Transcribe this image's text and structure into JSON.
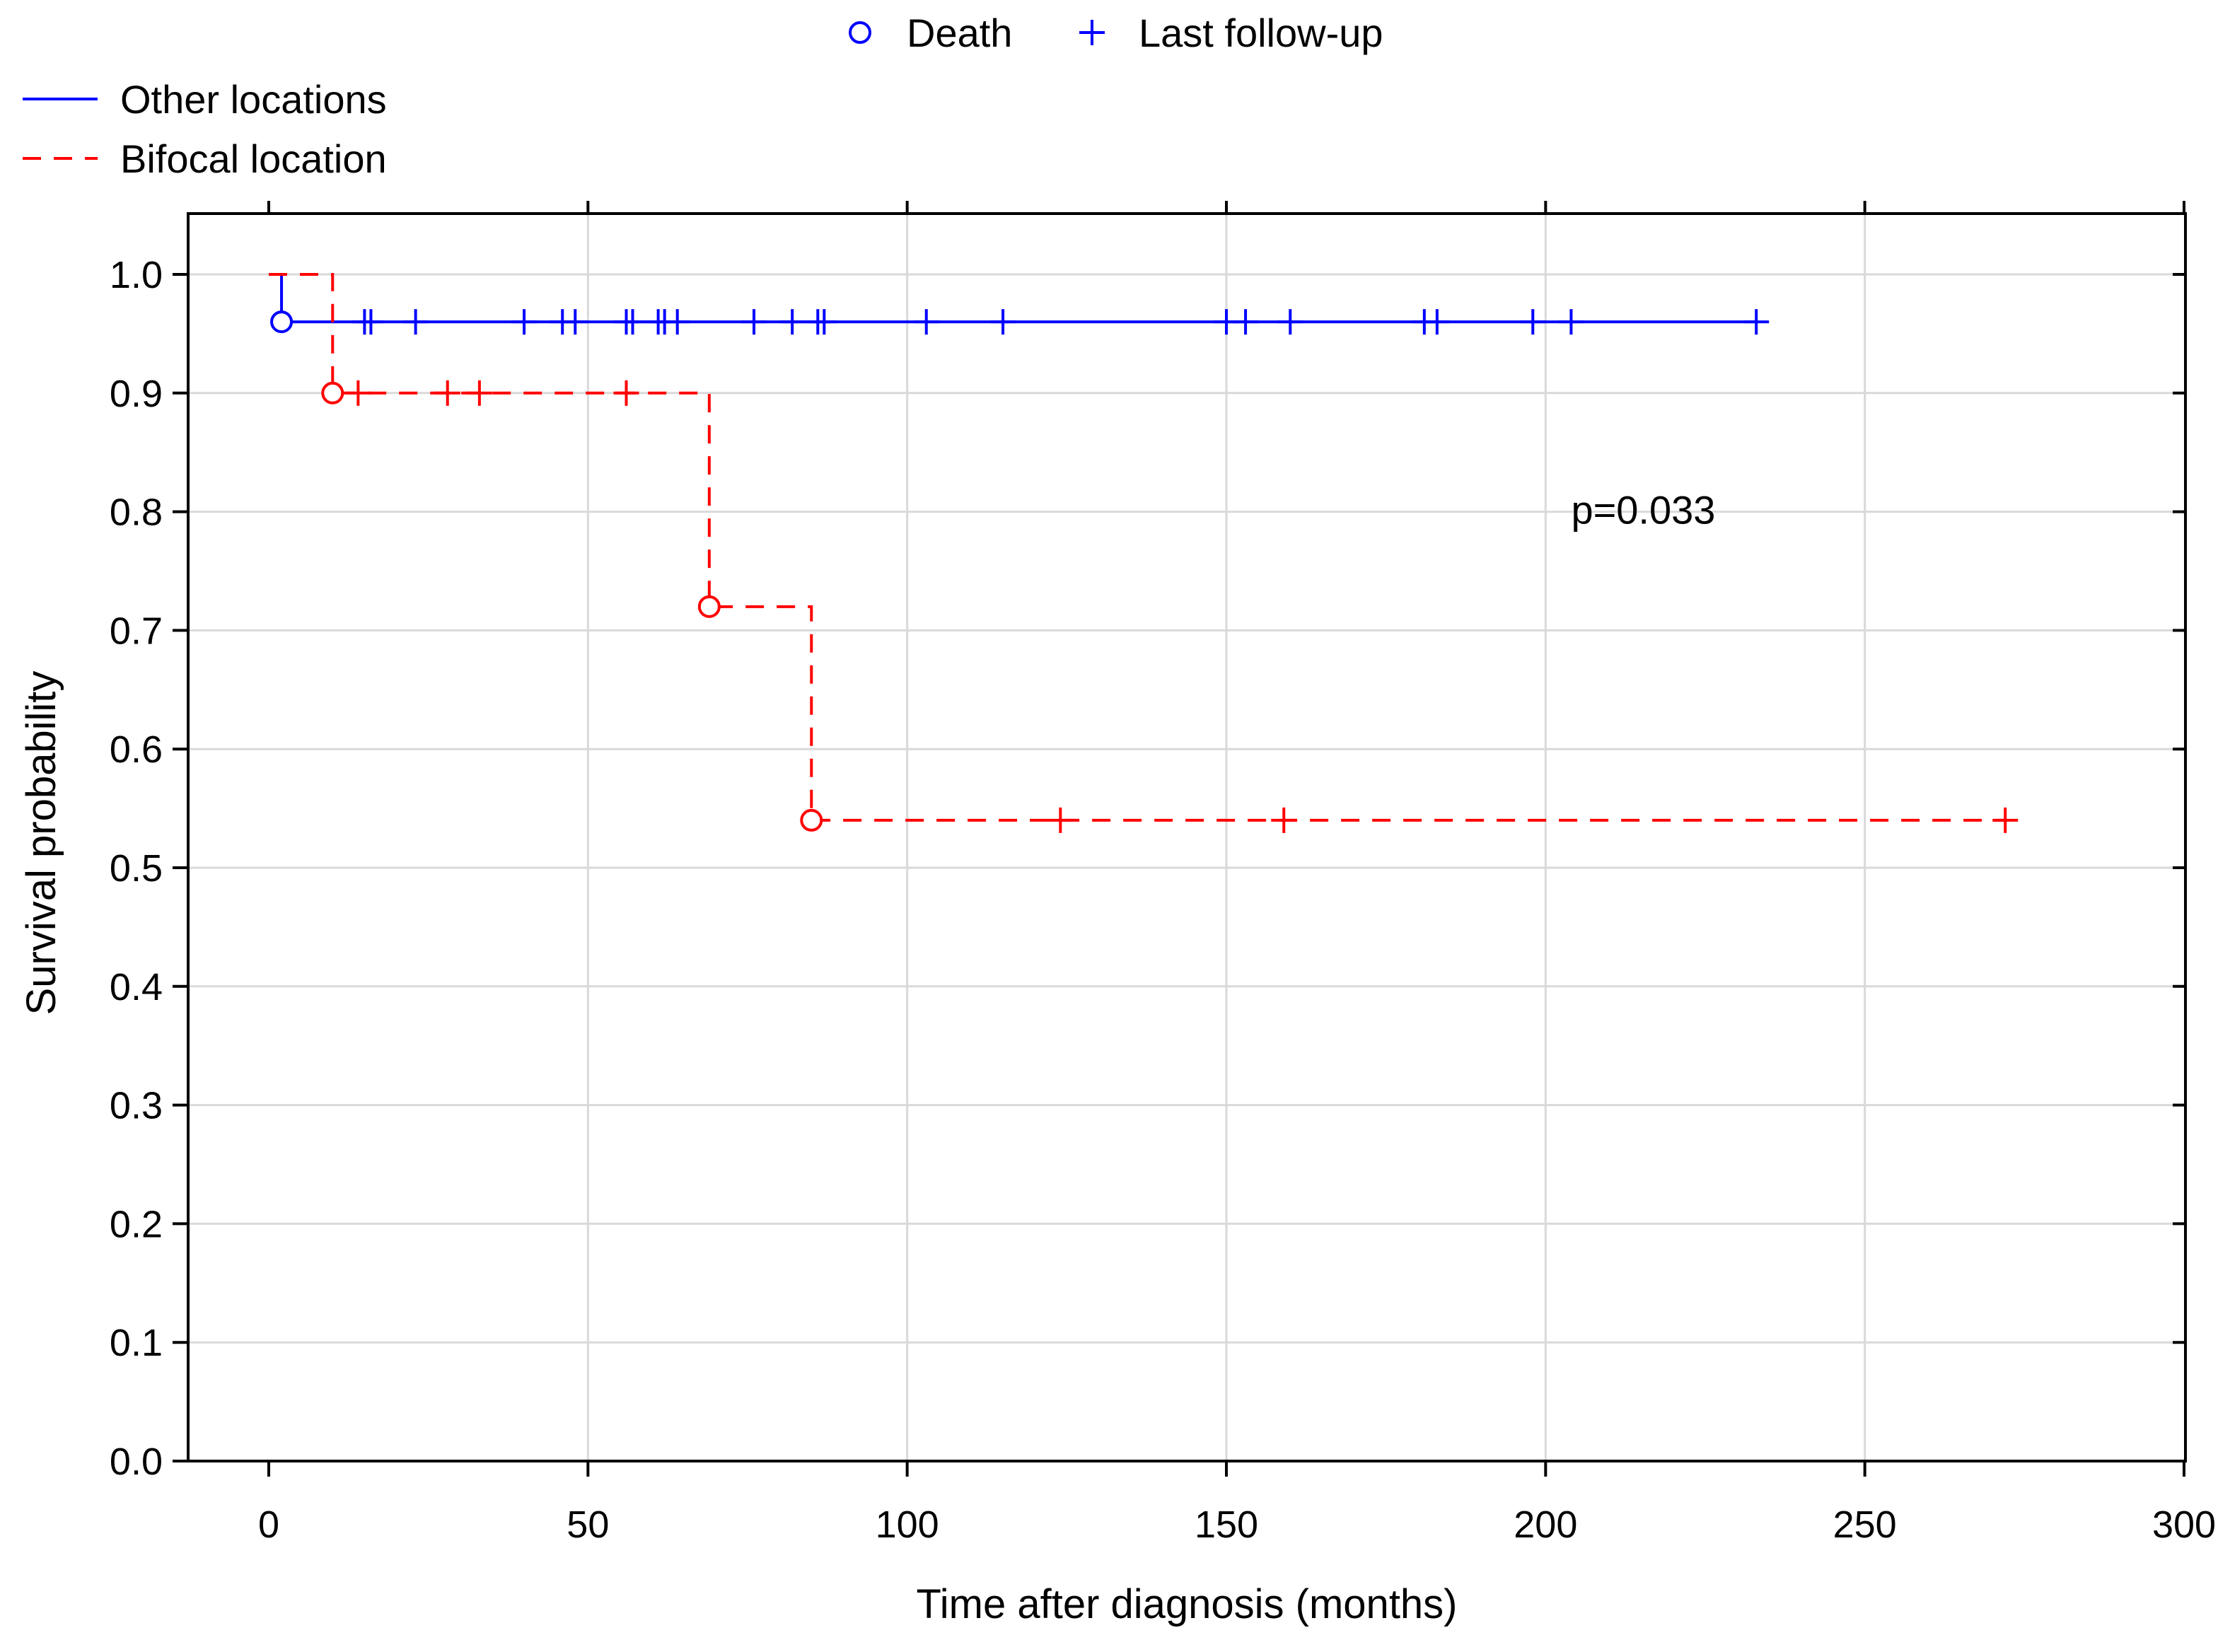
{
  "chart_data": {
    "type": "line",
    "subtype": "kaplan-meier",
    "title": "",
    "xlabel": "Time after diagnosis (months)",
    "ylabel": "Survival probability",
    "xlim": [
      0,
      300
    ],
    "ylim": [
      0.0,
      1.0
    ],
    "x_ticks": [
      0,
      50,
      100,
      150,
      200,
      250,
      300
    ],
    "x_tick_labels": [
      "0",
      "50",
      "100",
      "150",
      "200",
      "250",
      "300"
    ],
    "y_ticks": [
      0.0,
      0.1,
      0.2,
      0.3,
      0.4,
      0.5,
      0.6,
      0.7,
      0.8,
      0.9,
      1.0
    ],
    "y_tick_labels": [
      "0.0",
      "0.1",
      "0.2",
      "0.3",
      "0.4",
      "0.5",
      "0.6",
      "0.7",
      "0.8",
      "0.9",
      "1.0"
    ],
    "grid": true,
    "legend_markers": {
      "placement": "top-center",
      "items": [
        {
          "marker": "circle",
          "label": "Death"
        },
        {
          "marker": "plus",
          "label": "Last follow-up"
        }
      ]
    },
    "legend_lines": {
      "placement": "top-left",
      "items": [
        {
          "style": "solid",
          "color": "#0000ff",
          "label": "Other locations"
        },
        {
          "style": "dashed",
          "color": "#ff0000",
          "label": "Bifocal location"
        }
      ]
    },
    "annotations": [
      {
        "text": "p=0.033",
        "x": 204,
        "y": 0.79
      }
    ],
    "series": [
      {
        "name": "Other locations",
        "color": "#0000ff",
        "line_style": "solid",
        "steps": [
          [
            0,
            1.0
          ],
          [
            2,
            0.96
          ],
          [
            233,
            0.96
          ]
        ],
        "deaths": [
          [
            2,
            0.96
          ]
        ],
        "censored": [
          [
            15,
            0.96
          ],
          [
            16,
            0.96
          ],
          [
            23,
            0.96
          ],
          [
            40,
            0.96
          ],
          [
            46,
            0.96
          ],
          [
            48,
            0.96
          ],
          [
            56,
            0.96
          ],
          [
            57,
            0.96
          ],
          [
            61,
            0.96
          ],
          [
            62,
            0.96
          ],
          [
            64,
            0.96
          ],
          [
            76,
            0.96
          ],
          [
            82,
            0.96
          ],
          [
            86,
            0.96
          ],
          [
            87,
            0.96
          ],
          [
            103,
            0.96
          ],
          [
            115,
            0.96
          ],
          [
            150,
            0.96
          ],
          [
            153,
            0.96
          ],
          [
            160,
            0.96
          ],
          [
            181,
            0.96
          ],
          [
            183,
            0.96
          ],
          [
            198,
            0.96
          ],
          [
            204,
            0.96
          ],
          [
            233,
            0.96
          ]
        ]
      },
      {
        "name": "Bifocal location",
        "color": "#ff0000",
        "line_style": "dashed",
        "steps": [
          [
            0,
            1.0
          ],
          [
            10,
            0.9
          ],
          [
            69,
            0.72
          ],
          [
            85,
            0.54
          ],
          [
            272,
            0.54
          ]
        ],
        "deaths": [
          [
            10,
            0.9
          ],
          [
            69,
            0.72
          ],
          [
            85,
            0.54
          ]
        ],
        "censored": [
          [
            14,
            0.9
          ],
          [
            28,
            0.9
          ],
          [
            33,
            0.9
          ],
          [
            56,
            0.9
          ],
          [
            124,
            0.54
          ],
          [
            159,
            0.54
          ],
          [
            272,
            0.54
          ]
        ]
      }
    ]
  }
}
